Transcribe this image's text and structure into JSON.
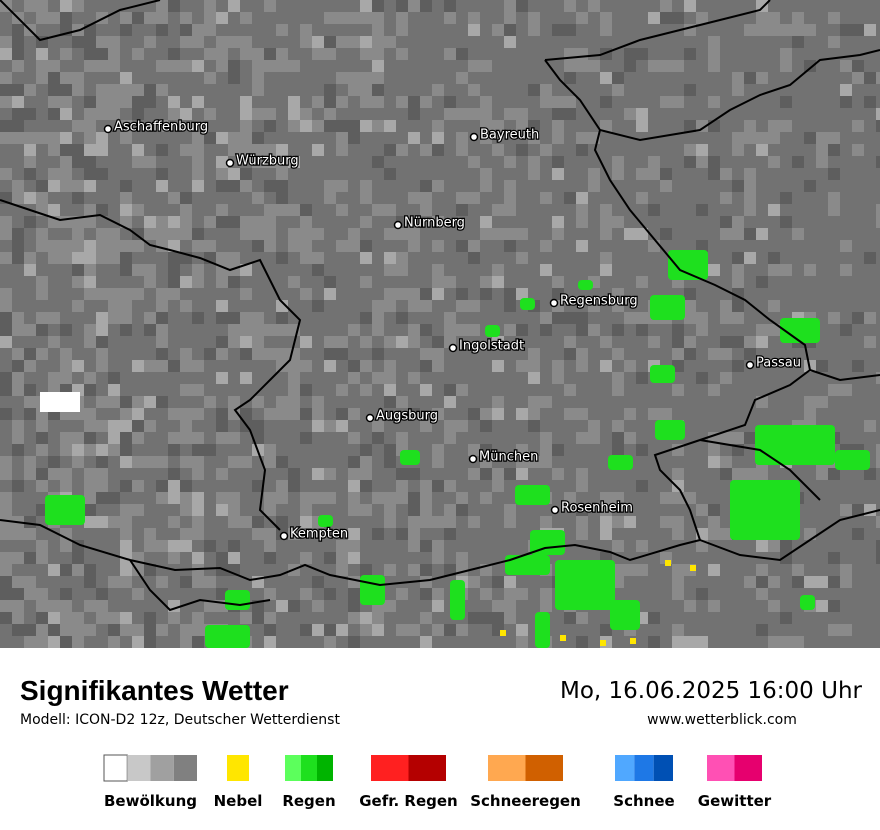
{
  "map": {
    "cities": [
      "Aschaffenburg",
      "Würzburg",
      "Bayreuth",
      "Nürnberg",
      "Regensburg",
      "Ingolstadt",
      "Passau",
      "Augsburg",
      "München",
      "Rosenheim",
      "Kempten"
    ]
  },
  "header": {
    "title": "Signifikantes Wetter",
    "model": "Modell: ICON-D2 12z, Deutscher Wetterdienst",
    "datetime": "Mo, 16.06.2025 16:00 Uhr",
    "website": "www.wetterblick.com"
  },
  "legend": [
    {
      "label": "Bewölkung",
      "colors": [
        "#ffffff",
        "#c8c8c8",
        "#a0a0a0",
        "#808080"
      ]
    },
    {
      "label": "Nebel",
      "colors": [
        "#ffe600"
      ]
    },
    {
      "label": "Regen",
      "colors": [
        "#5cff5c",
        "#1ee01e",
        "#00b400"
      ]
    },
    {
      "label": "Gefr. Regen",
      "colors": [
        "#ff2020",
        "#b40000"
      ]
    },
    {
      "label": "Schneeregen",
      "colors": [
        "#ffa850",
        "#d06000"
      ]
    },
    {
      "label": "Schnee",
      "colors": [
        "#50a8ff",
        "#1e78e6",
        "#0050b4"
      ]
    },
    {
      "label": "Gewitter",
      "colors": [
        "#ff50b4",
        "#e6006e"
      ]
    }
  ]
}
